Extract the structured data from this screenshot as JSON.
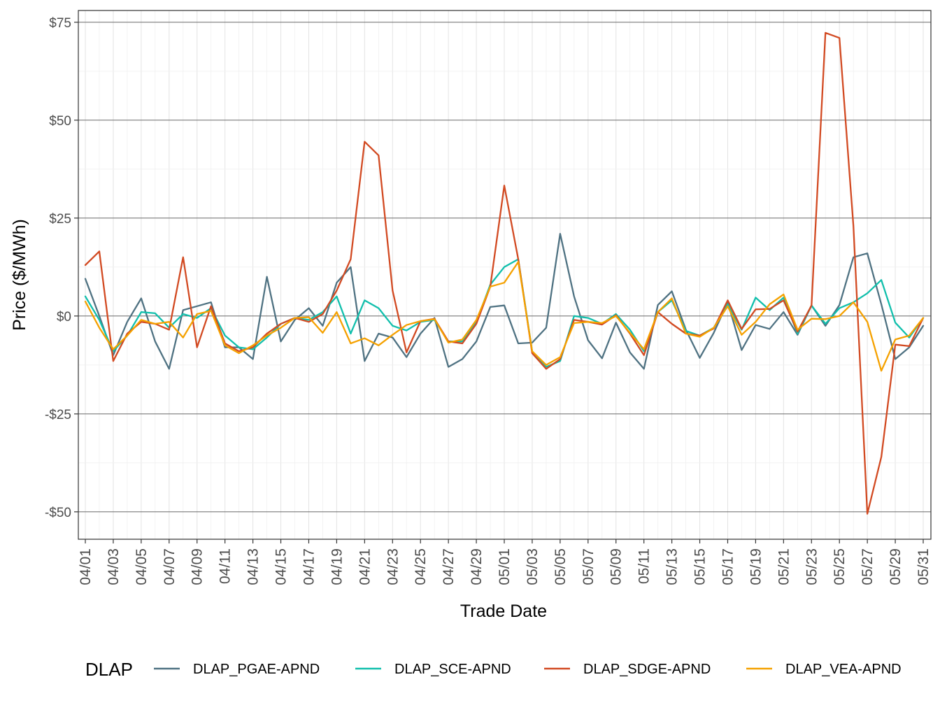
{
  "chart_data": {
    "type": "line",
    "xlabel": "Trade Date",
    "ylabel": "Price ($/MWh)",
    "ylim": [
      -57,
      78
    ],
    "y_ticks": [
      75,
      50,
      25,
      0,
      -25,
      -50
    ],
    "y_tick_labels": [
      "$75",
      "$50",
      "$25",
      "$0",
      "-$25",
      "-$50"
    ],
    "x": [
      "04/01",
      "04/02",
      "04/03",
      "04/04",
      "04/05",
      "04/06",
      "04/07",
      "04/08",
      "04/09",
      "04/10",
      "04/11",
      "04/12",
      "04/13",
      "04/14",
      "04/15",
      "04/16",
      "04/17",
      "04/18",
      "04/19",
      "04/20",
      "04/21",
      "04/22",
      "04/23",
      "04/24",
      "04/25",
      "04/26",
      "04/27",
      "04/28",
      "04/29",
      "04/30",
      "05/01",
      "05/02",
      "05/03",
      "05/04",
      "05/05",
      "05/06",
      "05/07",
      "05/08",
      "05/09",
      "05/10",
      "05/11",
      "05/12",
      "05/13",
      "05/14",
      "05/15",
      "05/16",
      "05/17",
      "05/18",
      "05/19",
      "05/20",
      "05/21",
      "05/22",
      "05/23",
      "05/24",
      "05/25",
      "05/26",
      "05/27",
      "05/28",
      "05/29",
      "05/30",
      "05/31"
    ],
    "x_tick_labels": [
      "04/01",
      "04/03",
      "04/05",
      "04/07",
      "04/09",
      "04/11",
      "04/13",
      "04/15",
      "04/17",
      "04/19",
      "04/21",
      "04/23",
      "04/25",
      "04/27",
      "04/29",
      "05/01",
      "05/03",
      "05/05",
      "05/07",
      "05/09",
      "05/11",
      "05/13",
      "05/15",
      "05/17",
      "05/19",
      "05/21",
      "05/23",
      "05/25",
      "05/27",
      "05/29",
      "05/31"
    ],
    "grid": true,
    "legend": {
      "title": "DLAP",
      "position": "bottom"
    },
    "series": [
      {
        "name": "DLAP_PGAE-APND",
        "color": "#4f7282",
        "values": [
          9.5,
          0,
          -10,
          -1.5,
          4.5,
          -6.5,
          -13.5,
          1.5,
          2.5,
          3.5,
          -8,
          -8,
          -11,
          10,
          -6.5,
          -1,
          2,
          -2.5,
          8.5,
          12.5,
          -11.5,
          -4.5,
          -5.5,
          -10.5,
          -4.5,
          -0.5,
          -13,
          -11,
          -6.5,
          2.3,
          2.7,
          -7,
          -6.8,
          -3,
          21,
          5,
          -6.2,
          -10.8,
          -1.7,
          -9.3,
          -13.5,
          2.8,
          6.3,
          -3.5,
          -10.7,
          -4.3,
          3.5,
          -8.7,
          -2.3,
          -3.3,
          1,
          -4.8,
          2.7,
          -2.5,
          2.8,
          15,
          16,
          3,
          -11,
          -8,
          -2.5
        ]
      },
      {
        "name": "DLAP_SCE-APND",
        "color": "#11bfac",
        "values": [
          5,
          -1,
          -9,
          -5,
          1,
          0.7,
          -3,
          0.5,
          -0.5,
          2,
          -5,
          -8,
          -8.5,
          -5.5,
          -2,
          -0.5,
          -1,
          1,
          5,
          -4.5,
          4,
          2,
          -2.5,
          -3.7,
          -1.5,
          -1,
          -6.5,
          -6.5,
          -1.5,
          8,
          12.5,
          14.5,
          -9,
          -13,
          -11.5,
          0,
          -0.5,
          -2,
          0.5,
          -3.5,
          -9,
          1,
          4,
          -3.8,
          -5,
          -3,
          3,
          -3.5,
          4.7,
          1.5,
          4.7,
          -4.5,
          2.7,
          -2,
          2,
          3.5,
          5.8,
          9.2,
          -1.7,
          -5.5,
          -0.5
        ]
      },
      {
        "name": "DLAP_SDGE-APND",
        "color": "#d24a22",
        "values": [
          13,
          16.5,
          -11.5,
          -4.5,
          -1.5,
          -2,
          -3.5,
          15,
          -8,
          2.5,
          -7,
          -9,
          -8,
          -4.5,
          -2,
          -0.5,
          -1.5,
          0.5,
          6.5,
          14.5,
          44.5,
          41,
          6.5,
          -9.3,
          -1.3,
          -0.7,
          -6.5,
          -7,
          -2,
          7.5,
          33.3,
          14.5,
          -9.5,
          -13.5,
          -11,
          -1,
          -1.5,
          -2.2,
          0.2,
          -4.5,
          -10,
          1,
          -2,
          -4.5,
          -5,
          -3.2,
          4,
          -3.3,
          1.7,
          1.8,
          4,
          -4,
          2.7,
          72.3,
          71,
          23,
          -50.5,
          -36,
          -7.3,
          -7.7,
          -0.5
        ]
      },
      {
        "name": "DLAP_VEA-APND",
        "color": "#f5a100",
        "values": [
          3.7,
          -3,
          -8.5,
          -5,
          -1,
          -2,
          -1.5,
          -5.5,
          0.5,
          1.3,
          -7.5,
          -9.5,
          -7.5,
          -5,
          -3,
          -0.5,
          -0.3,
          -4.3,
          1,
          -7,
          -5.7,
          -7.5,
          -4.8,
          -2.3,
          -1.3,
          -0.8,
          -6.8,
          -6,
          -1,
          7.5,
          8.5,
          13.8,
          -9,
          -12.5,
          -10.5,
          -1.8,
          -1.5,
          -1.8,
          0,
          -4.3,
          -8.5,
          1,
          4.5,
          -4.5,
          -5.3,
          -3,
          2.5,
          -4.8,
          -1.5,
          3,
          5.5,
          -3.5,
          -0.7,
          -0.8,
          0,
          3.5,
          -1.5,
          -14,
          -6,
          -5,
          -0.5
        ]
      }
    ]
  }
}
